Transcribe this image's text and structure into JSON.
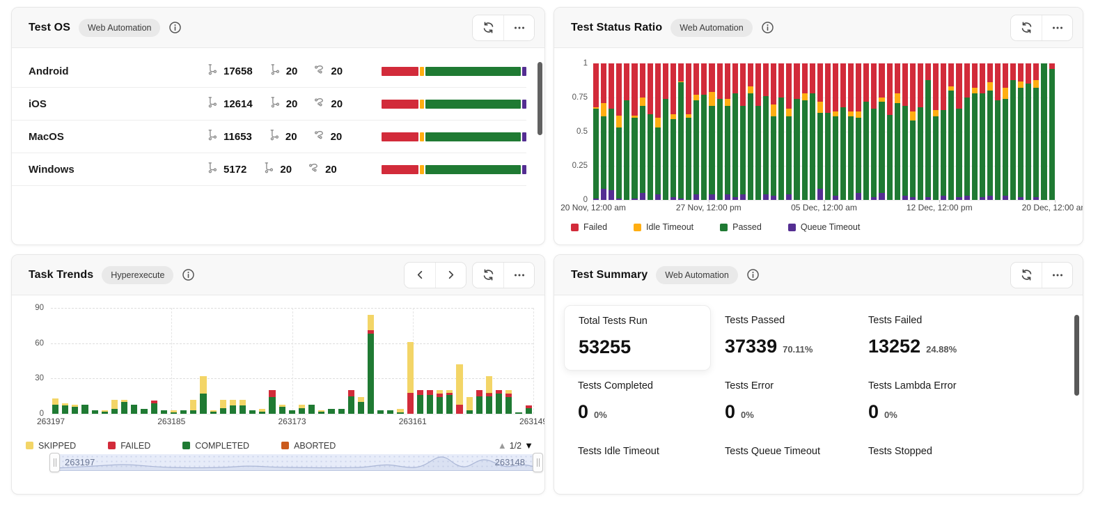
{
  "colors": {
    "failed": "#D22B3A",
    "idle_timeout": "#FFAE12",
    "passed": "#1F7A33",
    "queue_timeout": "#542E92",
    "skipped": "#F3D567",
    "aborted": "#CB5A1C",
    "header_bg": "#F8F8F8",
    "slider_track": "#E7ECF9"
  },
  "icons": {
    "refresh": "circular-arrows",
    "more": "ellipsis",
    "info": "circled-i",
    "prev": "chevron-left",
    "next": "chevron-right",
    "tests": "branch",
    "sessions": "flow-curve",
    "page_up": "▲",
    "page_down": "▼",
    "drag_handle": "||"
  },
  "panels": {
    "test_os": {
      "title": "Test OS",
      "badge": "Web Automation",
      "rows": [
        {
          "name": "Android",
          "metrics": [
            "17658",
            "20",
            "20"
          ],
          "bar": {
            "failed": 26,
            "idle_timeout": 3,
            "passed": 68,
            "queue_timeout": 3
          }
        },
        {
          "name": "iOS",
          "metrics": [
            "12614",
            "20",
            "20"
          ],
          "bar": {
            "failed": 26,
            "idle_timeout": 3,
            "passed": 68,
            "queue_timeout": 3
          }
        },
        {
          "name": "MacOS",
          "metrics": [
            "11653",
            "20",
            "20"
          ],
          "bar": {
            "failed": 26,
            "idle_timeout": 3,
            "passed": 68,
            "queue_timeout": 3
          }
        },
        {
          "name": "Windows",
          "metrics": [
            "5172",
            "20",
            "20"
          ],
          "bar": {
            "failed": 26,
            "idle_timeout": 3,
            "passed": 68,
            "queue_timeout": 3
          }
        }
      ]
    },
    "test_status_ratio": {
      "title": "Test Status Ratio",
      "badge": "Web Automation"
    },
    "task_trends": {
      "title": "Task Trends",
      "badge": "Hyperexecute",
      "pagination": "1/2",
      "slider": {
        "start_label": "263197",
        "end_label": "263148"
      }
    },
    "test_summary": {
      "title": "Test Summary",
      "badge": "Web Automation",
      "stats": [
        {
          "label": "Total Tests Run",
          "value": "53255",
          "pct": "",
          "highlight": true
        },
        {
          "label": "Tests Passed",
          "value": "37339",
          "pct": "70.11%"
        },
        {
          "label": "Tests Failed",
          "value": "13252",
          "pct": "24.88%"
        },
        {
          "label": "Tests Completed",
          "value": "0",
          "pct": "0%"
        },
        {
          "label": "Tests Error",
          "value": "0",
          "pct": "0%"
        },
        {
          "label": "Tests Lambda Error",
          "value": "0",
          "pct": "0%"
        },
        {
          "label": "Tests Idle Timeout"
        },
        {
          "label": "Tests Queue Timeout"
        },
        {
          "label": "Tests Stopped"
        }
      ]
    }
  },
  "chart_data": [
    {
      "id": "test_status_ratio",
      "type": "bar",
      "stacked": true,
      "normalized": true,
      "title": "Test Status Ratio",
      "ylim": [
        0,
        1
      ],
      "yticks": [
        "1",
        "0.75",
        "0.5",
        "0.25",
        "0"
      ],
      "xticklabels": [
        "20 Nov, 12:00 am",
        "27 Nov, 12:00 pm",
        "05 Dec, 12:00 am",
        "12 Dec, 12:00 pm",
        "20 Dec, 12:00 am"
      ],
      "legend": [
        "Failed",
        "Idle Timeout",
        "Passed",
        "Queue Timeout"
      ],
      "legend_position": "bottom",
      "grid": true,
      "series": [
        {
          "name": "Queue Timeout",
          "color": "#542E92",
          "values": [
            0.01,
            0.08,
            0.07,
            0.01,
            0,
            0.01,
            0.05,
            0,
            0.04,
            0,
            0.02,
            0.01,
            0,
            0.04,
            0,
            0.04,
            0,
            0.04,
            0.02,
            0.04,
            0,
            0,
            0.04,
            0.03,
            0,
            0.04,
            0,
            0,
            0,
            0.08,
            0,
            0.03,
            0,
            0,
            0.05,
            0,
            0.02,
            0.05,
            0,
            0,
            0.03,
            0.02,
            0,
            0.02,
            0,
            0.03,
            0,
            0.02,
            0.03,
            0,
            0.02,
            0.03,
            0,
            0.03,
            0,
            0.02,
            0,
            0.02,
            0,
            0
          ]
        },
        {
          "name": "Passed",
          "color": "#1F7A33",
          "values": [
            0.66,
            0.53,
            0.6,
            0.52,
            0.73,
            0.59,
            0.64,
            0.63,
            0.49,
            0.74,
            0.57,
            0.85,
            0.6,
            0.69,
            0.77,
            0.65,
            0.74,
            0.65,
            0.76,
            0.65,
            0.78,
            0.69,
            0.72,
            0.58,
            0.75,
            0.57,
            0.74,
            0.73,
            0.78,
            0.56,
            0.64,
            0.58,
            0.68,
            0.61,
            0.55,
            0.72,
            0.65,
            0.67,
            0.62,
            0.71,
            0.66,
            0.56,
            0.68,
            0.86,
            0.61,
            0.63,
            0.8,
            0.65,
            0.72,
            0.78,
            0.76,
            0.77,
            0.73,
            0.71,
            0.88,
            0.8,
            0.85,
            0.8,
            1.0,
            0.96
          ]
        },
        {
          "name": "Idle Timeout",
          "color": "#FFAE12",
          "values": [
            0.01,
            0.1,
            0,
            0.09,
            0,
            0.02,
            0.06,
            0,
            0.07,
            0,
            0.04,
            0.01,
            0.03,
            0.04,
            0,
            0.1,
            0,
            0.05,
            0,
            0,
            0.05,
            0,
            0,
            0.09,
            0,
            0.06,
            0,
            0.05,
            0,
            0.08,
            0,
            0.04,
            0,
            0.04,
            0.05,
            0,
            0,
            0.03,
            0,
            0.07,
            0,
            0.07,
            0,
            0,
            0.05,
            0,
            0.03,
            0,
            0,
            0.04,
            0,
            0.06,
            0,
            0.08,
            0,
            0.05,
            0,
            0.06,
            0,
            0
          ]
        },
        {
          "name": "Failed",
          "color": "#D22B3A",
          "values": [
            0.32,
            0.29,
            0.33,
            0.38,
            0.27,
            0.38,
            0.25,
            0.37,
            0.4,
            0.26,
            0.37,
            0.13,
            0.37,
            0.23,
            0.23,
            0.21,
            0.26,
            0.26,
            0.22,
            0.31,
            0.17,
            0.31,
            0.24,
            0.3,
            0.25,
            0.33,
            0.26,
            0.22,
            0.22,
            0.28,
            0.36,
            0.35,
            0.32,
            0.35,
            0.35,
            0.28,
            0.33,
            0.25,
            0.38,
            0.22,
            0.31,
            0.35,
            0.32,
            0.12,
            0.34,
            0.34,
            0.17,
            0.33,
            0.25,
            0.18,
            0.22,
            0.14,
            0.27,
            0.18,
            0.12,
            0.13,
            0.15,
            0.12,
            0,
            0.04
          ]
        }
      ]
    },
    {
      "id": "task_trends",
      "type": "bar",
      "stacked": true,
      "title": "Task Trends",
      "ylim": [
        0,
        90
      ],
      "yticks": [
        "90",
        "60",
        "30",
        "0"
      ],
      "xticklabels": [
        "263197",
        "263185",
        "263173",
        "263161",
        "263149"
      ],
      "legend": [
        "SKIPPED",
        "FAILED",
        "COMPLETED",
        "ABORTED"
      ],
      "legend_position": "bottom",
      "grid": true,
      "series": [
        {
          "name": "COMPLETED",
          "color": "#1F7A33",
          "values": [
            8,
            7,
            6,
            8,
            3,
            2,
            4,
            10,
            8,
            4,
            9,
            3,
            1,
            3,
            3,
            17,
            2,
            5,
            7,
            7,
            3,
            2,
            14,
            6,
            3,
            5,
            8,
            2,
            4,
            4,
            15,
            10,
            68,
            3,
            3,
            1,
            0,
            16,
            16,
            14,
            16,
            0,
            3,
            15,
            15,
            17,
            14,
            1,
            5
          ]
        },
        {
          "name": "FAILED",
          "color": "#D22B3A",
          "values": [
            0,
            0,
            0,
            0,
            0,
            0,
            0,
            0,
            0,
            0,
            2,
            0,
            0,
            0,
            0,
            0,
            0,
            0,
            0,
            0,
            0,
            0,
            6,
            0,
            0,
            0,
            0,
            0,
            0,
            0,
            5,
            0,
            3,
            0,
            0,
            0,
            18,
            4,
            4,
            3,
            2,
            8,
            0,
            5,
            2,
            3,
            3,
            0,
            2
          ]
        },
        {
          "name": "ABORTED",
          "color": "#CB5A1C",
          "values": [
            0,
            0,
            0,
            0,
            0,
            0,
            0,
            0,
            0,
            0,
            0,
            0,
            0,
            0,
            0,
            0,
            0,
            0,
            0,
            0,
            0,
            0,
            0,
            0,
            0,
            0,
            0,
            0,
            0,
            0,
            0,
            0,
            0,
            0,
            0,
            0,
            0,
            0,
            0,
            0,
            0,
            0,
            0,
            0,
            1,
            0,
            0,
            0,
            0
          ]
        },
        {
          "name": "SKIPPED",
          "color": "#F3D567",
          "values": [
            5,
            2,
            2,
            0,
            0,
            1,
            8,
            2,
            0,
            0,
            0,
            0,
            2,
            0,
            9,
            15,
            1,
            7,
            5,
            5,
            0,
            2,
            0,
            2,
            0,
            3,
            0,
            1,
            0,
            0,
            0,
            4,
            13,
            0,
            0,
            3,
            43,
            0,
            0,
            3,
            2,
            34,
            11,
            0,
            14,
            0,
            3,
            0,
            0
          ]
        }
      ]
    }
  ]
}
